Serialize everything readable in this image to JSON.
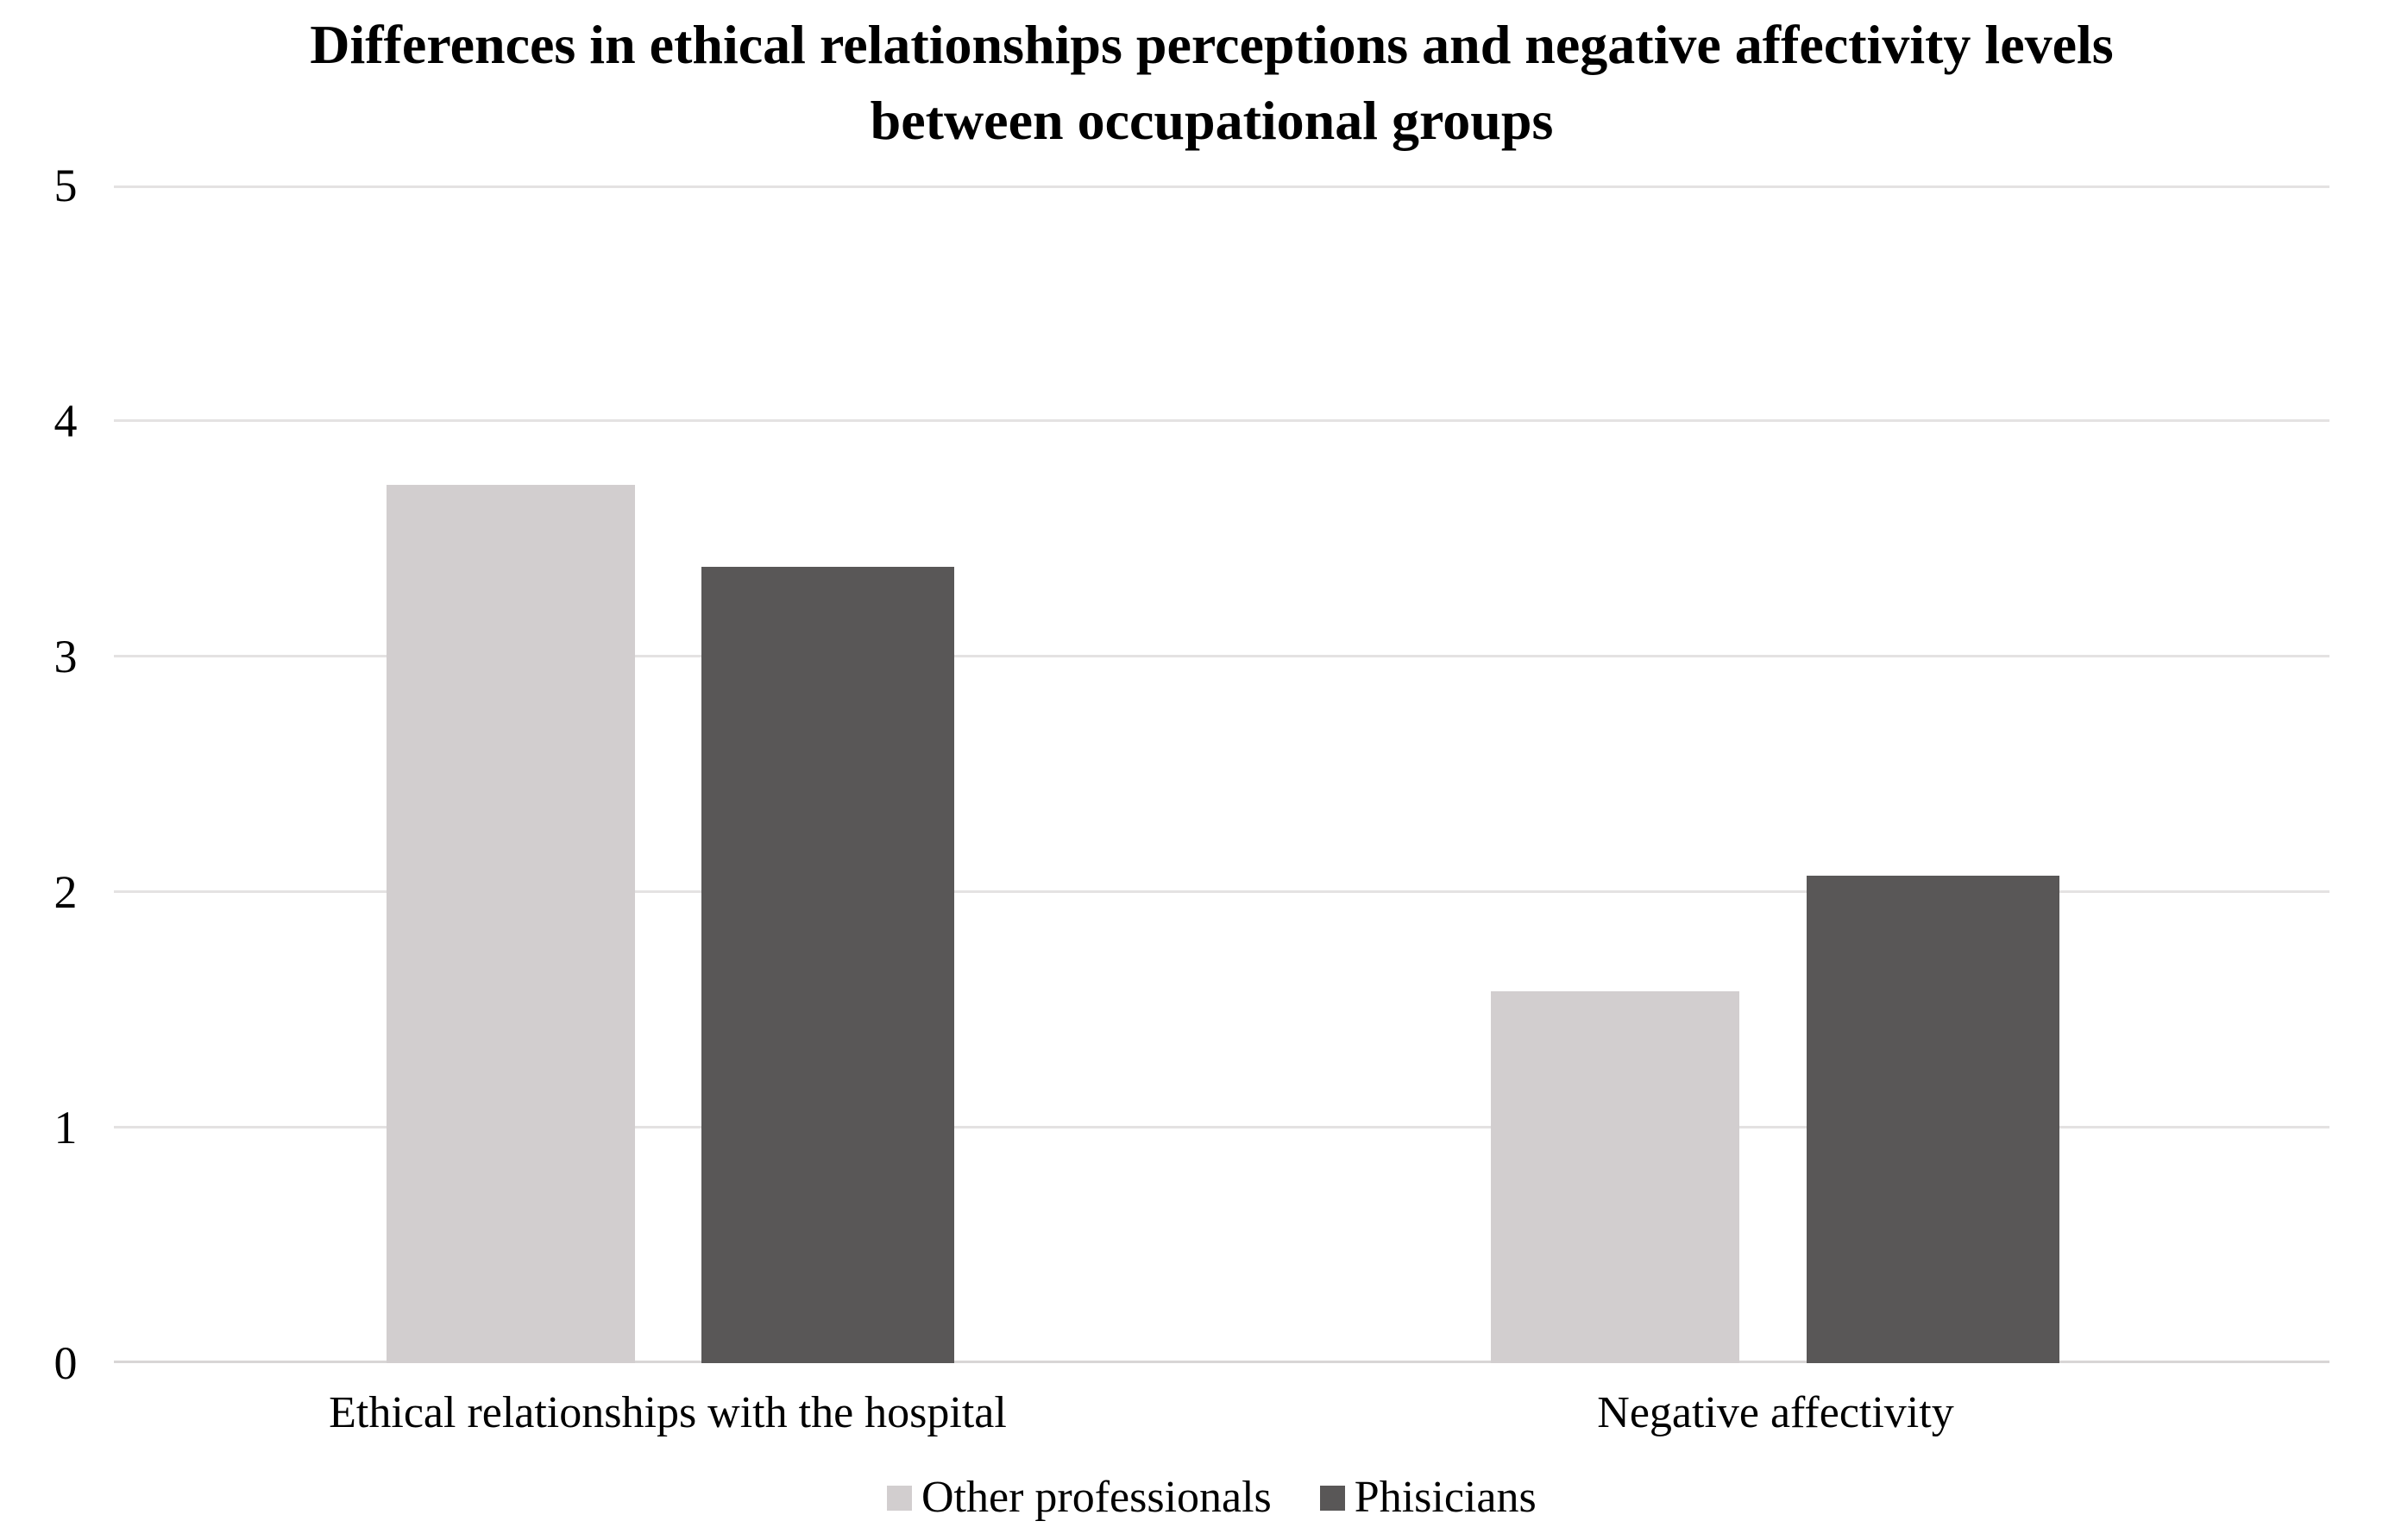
{
  "title_line1": "Differences in ethical relationships perceptions and negative affectivity levels",
  "title_line2": "between occupational groups",
  "chart_data": {
    "type": "bar",
    "title": "Differences in ethical relationships perceptions and negative affectivity levels between occupational groups",
    "categories": [
      "Ethical relationships with the hospital",
      "Negative affectivity"
    ],
    "series": [
      {
        "name": "Other professionals",
        "color": "#d2cecf",
        "values": [
          3.73,
          1.58
        ]
      },
      {
        "name": "Phisicians",
        "color": "#595757",
        "values": [
          3.38,
          2.07
        ]
      }
    ],
    "xlabel": "",
    "ylabel": "",
    "ylim": [
      0,
      5
    ],
    "yticks": [
      5,
      4,
      3,
      2,
      1,
      0
    ],
    "grid": "horizontal",
    "legend_position": "bottom",
    "gridline_color": "#e4e2e2",
    "baseline_color": "#d8d6d6",
    "text_color": "#000000",
    "background_color": "#ffffff"
  }
}
